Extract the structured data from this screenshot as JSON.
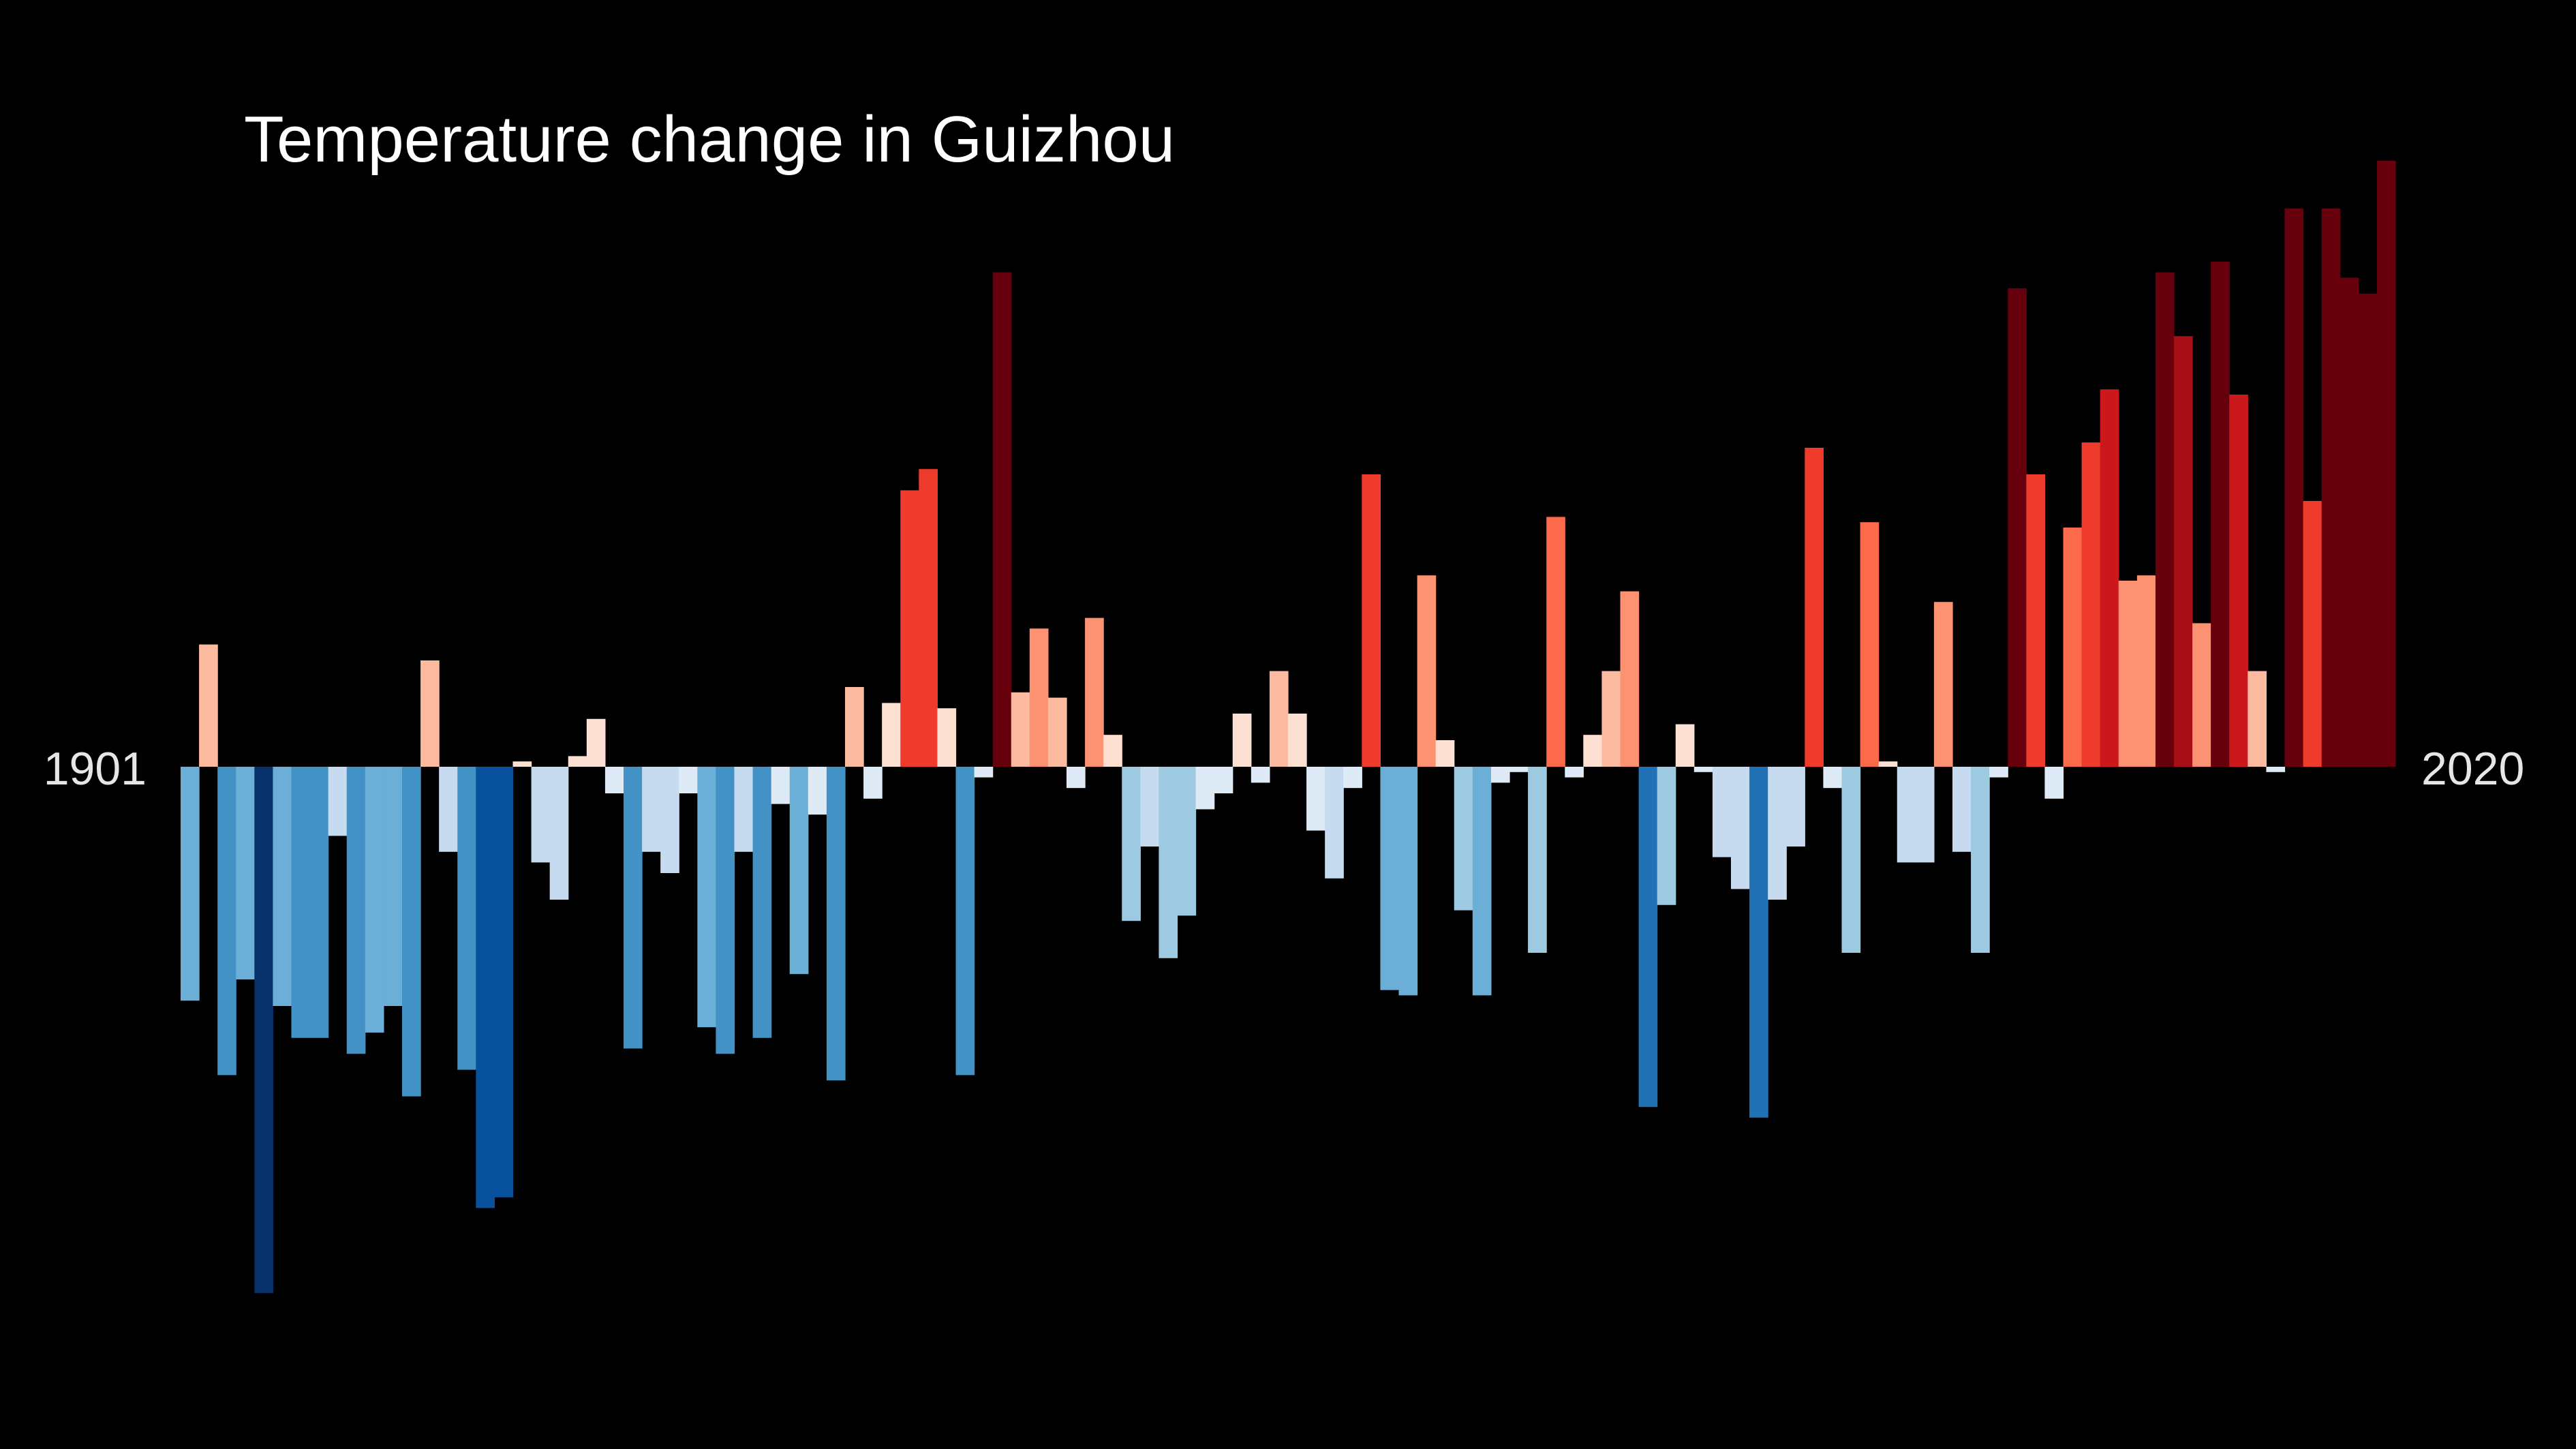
{
  "chart_data": {
    "type": "bar",
    "title": "Temperature change in Guizhou",
    "start_label": "1901",
    "end_label": "2020",
    "x": [
      1901,
      1902,
      1903,
      1904,
      1905,
      1906,
      1907,
      1908,
      1909,
      1910,
      1911,
      1912,
      1913,
      1914,
      1915,
      1916,
      1917,
      1918,
      1919,
      1920,
      1921,
      1922,
      1923,
      1924,
      1925,
      1926,
      1927,
      1928,
      1929,
      1930,
      1931,
      1932,
      1933,
      1934,
      1935,
      1936,
      1937,
      1938,
      1939,
      1940,
      1941,
      1942,
      1943,
      1944,
      1945,
      1946,
      1947,
      1948,
      1949,
      1950,
      1951,
      1952,
      1953,
      1954,
      1955,
      1956,
      1957,
      1958,
      1959,
      1960,
      1961,
      1962,
      1963,
      1964,
      1965,
      1966,
      1967,
      1968,
      1969,
      1970,
      1971,
      1972,
      1973,
      1974,
      1975,
      1976,
      1977,
      1978,
      1979,
      1980,
      1981,
      1982,
      1983,
      1984,
      1985,
      1986,
      1987,
      1988,
      1989,
      1990,
      1991,
      1992,
      1993,
      1994,
      1995,
      1996,
      1997,
      1998,
      1999,
      2000,
      2001,
      2002,
      2003,
      2004,
      2005,
      2006,
      2007,
      2008,
      2009,
      2010,
      2011,
      2012,
      2013,
      2014,
      2015,
      2016,
      2017,
      2018,
      2019,
      2020
    ],
    "values": [
      -0.44,
      0.23,
      -0.58,
      -0.4,
      -0.99,
      -0.45,
      -0.51,
      -0.51,
      -0.13,
      -0.54,
      -0.5,
      -0.45,
      -0.62,
      0.2,
      -0.16,
      -0.57,
      -0.83,
      -0.81,
      0.01,
      -0.18,
      -0.25,
      0.02,
      0.09,
      -0.05,
      -0.53,
      -0.16,
      -0.2,
      -0.05,
      -0.49,
      -0.54,
      -0.16,
      -0.51,
      -0.07,
      -0.39,
      -0.09,
      -0.59,
      0.15,
      -0.06,
      0.12,
      0.52,
      0.56,
      0.11,
      -0.58,
      -0.02,
      0.93,
      0.14,
      0.26,
      0.13,
      -0.04,
      0.28,
      0.06,
      -0.29,
      -0.15,
      -0.36,
      -0.28,
      -0.08,
      -0.05,
      0.1,
      -0.03,
      0.18,
      0.1,
      -0.12,
      -0.21,
      -0.04,
      0.55,
      -0.42,
      -0.43,
      0.36,
      0.05,
      -0.27,
      -0.43,
      -0.03,
      -0.01,
      -0.35,
      0.47,
      -0.02,
      0.06,
      0.18,
      0.33,
      -0.64,
      -0.26,
      0.08,
      -0.01,
      -0.17,
      -0.23,
      -0.66,
      -0.25,
      -0.15,
      0.6,
      -0.04,
      -0.35,
      0.46,
      0.01,
      -0.18,
      -0.18,
      0.31,
      -0.16,
      -0.35,
      -0.02,
      0.9,
      0.55,
      -0.06,
      0.45,
      0.61,
      0.71,
      0.35,
      0.36,
      0.93,
      0.81,
      0.27,
      0.95,
      0.7,
      0.18,
      -0.01,
      1.05,
      0.5,
      1.05,
      0.92,
      0.89,
      1.14
    ],
    "ylim": [
      -1.2,
      1.35
    ],
    "colors": {
      "background": "#000000",
      "title": "#ffffff",
      "labels": "#e6e6e6",
      "scale": [
        "#08306b",
        "#08519c",
        "#2171b5",
        "#4292c6",
        "#6baed6",
        "#9ecae1",
        "#c6dbef",
        "#deebf7",
        "#fee0d2",
        "#fcbba1",
        "#fc9272",
        "#fb6a4a",
        "#ef3b2c",
        "#cb181d",
        "#a50f15",
        "#67000d"
      ]
    }
  }
}
